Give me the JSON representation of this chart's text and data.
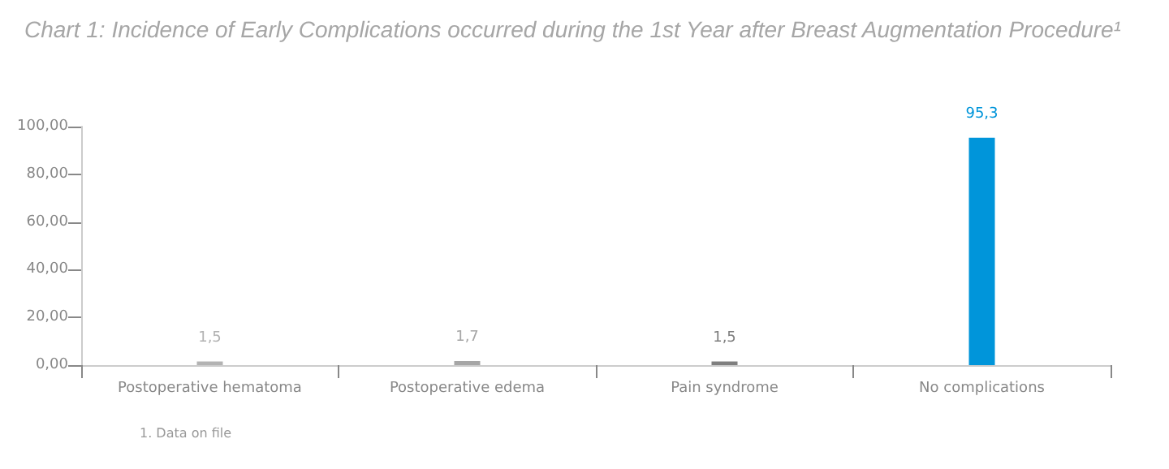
{
  "chart_data": {
    "type": "bar",
    "title": "Chart 1: Incidence of Early Complications occurred during the 1st Year after Breast Augmentation Procedure¹",
    "categories": [
      "Postoperative hematoma",
      "Postoperative edema",
      "Pain syndrome",
      "No complications"
    ],
    "values": [
      1.5,
      1.7,
      1.5,
      95.3
    ],
    "colors": [
      "#b3b3b3",
      "#a6a6a6",
      "#7f7f7f",
      "#0095da"
    ],
    "value_labels": [
      "1,5",
      "1,7",
      "1,5",
      "95,3"
    ],
    "ylim": [
      0,
      100
    ],
    "yticks": [
      {
        "value": 0,
        "label": "0,00"
      },
      {
        "value": 20,
        "label": "20,00"
      },
      {
        "value": 40,
        "label": "40,00"
      },
      {
        "value": 60,
        "label": "60,00"
      },
      {
        "value": 80,
        "label": "80,00"
      },
      {
        "value": 100,
        "label": "100,00"
      }
    ],
    "grid": false,
    "annotations": [
      "1. Data on file"
    ]
  }
}
